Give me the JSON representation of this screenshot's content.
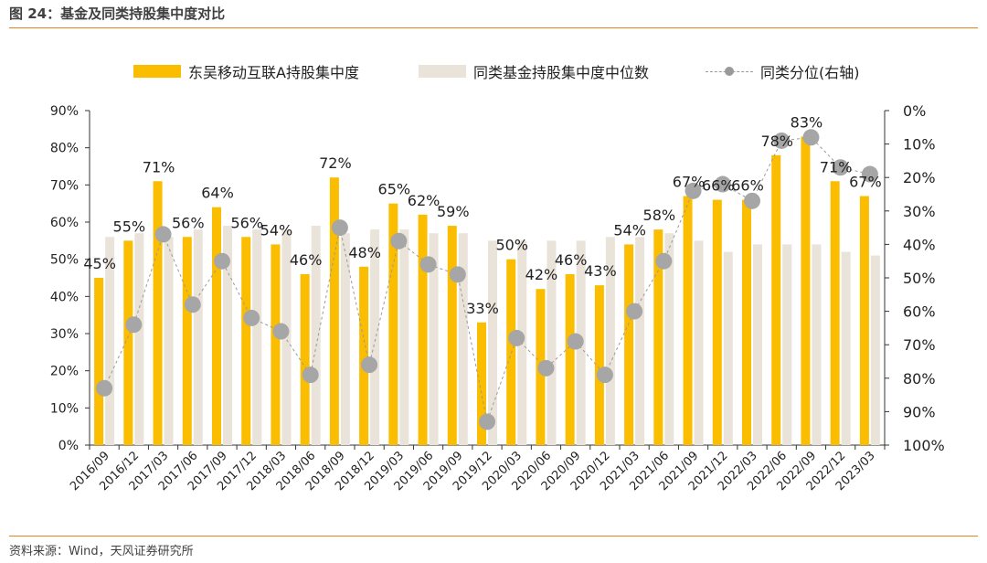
{
  "header": {
    "title": "图 24：基金及同类持股集中度对比"
  },
  "footer": {
    "source": "资料来源：Wind，天风证券研究所"
  },
  "legend": {
    "bar1": "东吴移动互联A持股集中度",
    "bar2": "同类基金持股集中度中位数",
    "line": "同类分位(右轴)"
  },
  "colors": {
    "bar1": "#fbbd00",
    "bar2": "#e9e3da",
    "line": "#9a9a9a",
    "marker": "#a6a6a6",
    "accent": "#e8831f"
  },
  "chart_data": {
    "type": "bar",
    "categories": [
      "2016/09",
      "2016/12",
      "2017/03",
      "2017/06",
      "2017/09",
      "2017/12",
      "2018/03",
      "2018/06",
      "2018/09",
      "2018/12",
      "2019/03",
      "2019/06",
      "2019/09",
      "2019/12",
      "2020/03",
      "2020/06",
      "2020/09",
      "2020/12",
      "2021/03",
      "2021/06",
      "2021/09",
      "2021/12",
      "2022/03",
      "2022/06",
      "2022/09",
      "2022/12",
      "2023/03"
    ],
    "series": [
      {
        "name": "东吴移动互联A持股集中度",
        "axis": "left",
        "type": "bar",
        "values": [
          45,
          55,
          71,
          56,
          64,
          56,
          54,
          46,
          72,
          48,
          65,
          62,
          59,
          33,
          50,
          42,
          46,
          43,
          54,
          58,
          67,
          66,
          66,
          78,
          83,
          71,
          67
        ]
      },
      {
        "name": "同类基金持股集中度中位数",
        "axis": "left",
        "type": "bar",
        "values": [
          56,
          57,
          56,
          58,
          59,
          58,
          58,
          59,
          57,
          58,
          58,
          57,
          57,
          55,
          55,
          55,
          55,
          56,
          56,
          57,
          55,
          52,
          54,
          54,
          54,
          52,
          51
        ]
      },
      {
        "name": "同类分位(右轴)",
        "axis": "right",
        "type": "line",
        "values": [
          83,
          64,
          37,
          58,
          45,
          62,
          66,
          79,
          35,
          76,
          39,
          46,
          49,
          93,
          68,
          77,
          69,
          79,
          60,
          45,
          24,
          22,
          27,
          9,
          8,
          17,
          19
        ]
      }
    ],
    "data_labels": [
      "45%",
      "55%",
      "71%",
      "56%",
      "64%",
      "56%",
      "54%",
      "46%",
      "72%",
      "48%",
      "65%",
      "62%",
      "59%",
      "33%",
      "50%",
      "42%",
      "46%",
      "43%",
      "54%",
      "58%",
      "67%",
      "66%",
      "66%",
      "78%",
      "83%",
      "71%",
      "67%"
    ],
    "left_axis": {
      "min": 0,
      "max": 90,
      "step": 10,
      "ticks": [
        "0%",
        "10%",
        "20%",
        "30%",
        "40%",
        "50%",
        "60%",
        "70%",
        "80%",
        "90%"
      ]
    },
    "right_axis": {
      "min": 0,
      "max": 100,
      "step": 10,
      "inverted": true,
      "ticks": [
        "0%",
        "10%",
        "20%",
        "30%",
        "40%",
        "50%",
        "60%",
        "70%",
        "80%",
        "90%",
        "100%"
      ]
    }
  }
}
